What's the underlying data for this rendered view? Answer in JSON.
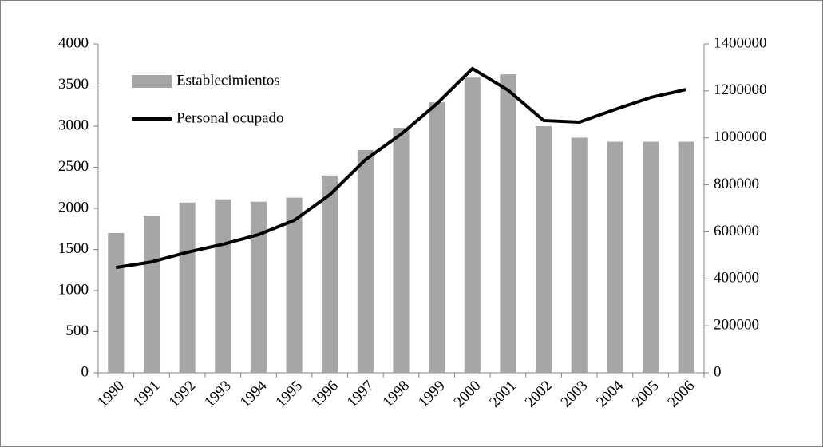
{
  "chart_data": {
    "type": "bar",
    "categories": [
      "1990",
      "1991",
      "1992",
      "1993",
      "1994",
      "1995",
      "1996",
      "1997",
      "1998",
      "1999",
      "2000",
      "2001",
      "2002",
      "2003",
      "2004",
      "2005",
      "2006"
    ],
    "series": [
      {
        "name": "Establecimientos",
        "type": "bar",
        "color": "#a6a6a6",
        "values": [
          1700,
          1910,
          2070,
          2110,
          2080,
          2130,
          2400,
          2710,
          2980,
          3290,
          3590,
          3630,
          3000,
          2860,
          2810,
          2810,
          2810
        ]
      },
      {
        "name": "Personal ocupado",
        "type": "line",
        "color": "#000000",
        "axis": "y2",
        "values": [
          448000,
          472000,
          513000,
          547000,
          588000,
          649000,
          758000,
          907000,
          1016000,
          1145000,
          1295000,
          1203000,
          1074000,
          1067000,
          1121000,
          1172000,
          1206000
        ]
      }
    ],
    "ylim": [
      0,
      4000
    ],
    "yticks": [
      0,
      500,
      1000,
      1500,
      2000,
      2500,
      3000,
      3500,
      4000
    ],
    "y2lim": [
      0,
      1400000
    ],
    "y2ticks": [
      0,
      200000,
      400000,
      600000,
      800000,
      1000000,
      1200000,
      1400000
    ],
    "legend": "upper-left",
    "grid": false
  }
}
